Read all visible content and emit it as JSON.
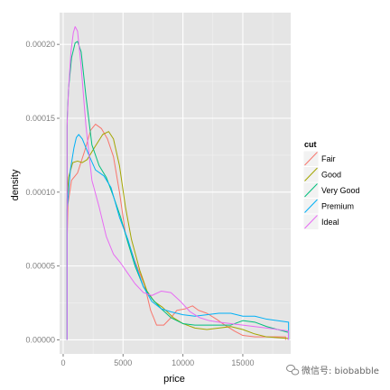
{
  "chart_data": {
    "type": "line",
    "xlabel": "price",
    "ylabel": "density",
    "xlim": [
      -300,
      19000
    ],
    "ylim": [
      -9.5e-06,
      0.0002215
    ],
    "x_ticks": [
      0,
      5000,
      10000,
      15000
    ],
    "x_tick_labels": [
      "0",
      "5000",
      "10000",
      "15000"
    ],
    "y_ticks": [
      0,
      5e-05,
      0.0001,
      0.00015,
      0.0002
    ],
    "y_tick_labels": [
      "0.00000",
      "0.00005",
      "0.00010",
      "0.00015",
      "0.00020"
    ],
    "grid": true,
    "legend": {
      "title": "cut",
      "position": "right",
      "entries": [
        "Fair",
        "Good",
        "Very Good",
        "Premium",
        "Ideal"
      ]
    },
    "series": [
      {
        "name": "Fair",
        "color": "#F8766D",
        "points": [
          [
            337,
            0
          ],
          [
            337,
            7e-05
          ],
          [
            400,
            9.2e-05
          ],
          [
            700,
            0.000108
          ],
          [
            1200,
            0.000113
          ],
          [
            1800,
            0.000128
          ],
          [
            2300,
            0.000142
          ],
          [
            2700,
            0.000146
          ],
          [
            3200,
            0.000143
          ],
          [
            3700,
            0.000136
          ],
          [
            4200,
            0.000124
          ],
          [
            4700,
            0.0001
          ],
          [
            5200,
            7.2e-05
          ],
          [
            6000,
            5.3e-05
          ],
          [
            6800,
            3.7e-05
          ],
          [
            7300,
            2e-05
          ],
          [
            7800,
            1e-05
          ],
          [
            8400,
            1e-05
          ],
          [
            9000,
            1.5e-05
          ],
          [
            9500,
            2e-05
          ],
          [
            10200,
            2.1e-05
          ],
          [
            10800,
            2.3e-05
          ],
          [
            11300,
            2e-05
          ],
          [
            12000,
            1.8e-05
          ],
          [
            12800,
            1.4e-05
          ],
          [
            13500,
            1e-05
          ],
          [
            14300,
            6e-06
          ],
          [
            15000,
            3e-06
          ],
          [
            16000,
            2e-06
          ],
          [
            17000,
            2e-06
          ],
          [
            18574,
            2e-06
          ],
          [
            18574,
            0
          ]
        ]
      },
      {
        "name": "Good",
        "color": "#A3A500",
        "points": [
          [
            327,
            0
          ],
          [
            327,
            9.5e-05
          ],
          [
            450,
            0.00011
          ],
          [
            800,
            0.00012
          ],
          [
            1200,
            0.000121
          ],
          [
            1600,
            0.00012
          ],
          [
            2000,
            0.000122
          ],
          [
            2600,
            0.00013
          ],
          [
            3300,
            0.000139
          ],
          [
            3800,
            0.000141
          ],
          [
            4200,
            0.000136
          ],
          [
            4700,
            0.000118
          ],
          [
            5200,
            9e-05
          ],
          [
            5700,
            6.8e-05
          ],
          [
            6400,
            4.7e-05
          ],
          [
            7000,
            3.3e-05
          ],
          [
            7600,
            2.6e-05
          ],
          [
            8300,
            2.2e-05
          ],
          [
            9200,
            1.5e-05
          ],
          [
            10000,
            1.1e-05
          ],
          [
            11000,
            8e-06
          ],
          [
            12000,
            7e-06
          ],
          [
            13000,
            8e-06
          ],
          [
            14000,
            9e-06
          ],
          [
            15000,
            7e-06
          ],
          [
            16000,
            4e-06
          ],
          [
            17000,
            2e-06
          ],
          [
            18788,
            1e-06
          ],
          [
            18788,
            0
          ]
        ]
      },
      {
        "name": "Very Good",
        "color": "#00BF7D",
        "points": [
          [
            336,
            0
          ],
          [
            336,
            0.00015
          ],
          [
            450,
            0.00017
          ],
          [
            700,
            0.000191
          ],
          [
            1000,
            0.000201
          ],
          [
            1200,
            0.000202
          ],
          [
            1500,
            0.000195
          ],
          [
            1900,
            0.000165
          ],
          [
            2400,
            0.000132
          ],
          [
            3000,
            0.000118
          ],
          [
            3600,
            0.00011
          ],
          [
            4200,
            9.7e-05
          ],
          [
            4800,
            8.3e-05
          ],
          [
            5400,
            6.6e-05
          ],
          [
            6000,
            5e-05
          ],
          [
            6700,
            3.6e-05
          ],
          [
            7400,
            2.8e-05
          ],
          [
            8200,
            2.1e-05
          ],
          [
            9000,
            1.5e-05
          ],
          [
            10000,
            1.1e-05
          ],
          [
            11000,
            1e-05
          ],
          [
            12000,
            1e-05
          ],
          [
            13000,
            1e-05
          ],
          [
            14000,
            1e-05
          ],
          [
            15000,
            1.3e-05
          ],
          [
            16000,
            1.2e-05
          ],
          [
            17000,
            9e-06
          ],
          [
            18818,
            5e-06
          ],
          [
            18818,
            0
          ]
        ]
      },
      {
        "name": "Premium",
        "color": "#00B0F6",
        "points": [
          [
            326,
            0
          ],
          [
            326,
            8.8e-05
          ],
          [
            600,
            0.000115
          ],
          [
            900,
            0.00013
          ],
          [
            1100,
            0.000137
          ],
          [
            1300,
            0.000139
          ],
          [
            1600,
            0.000136
          ],
          [
            2100,
            0.000126
          ],
          [
            2700,
            0.000115
          ],
          [
            3400,
            0.000111
          ],
          [
            4000,
            0.000103
          ],
          [
            4700,
            8.3e-05
          ],
          [
            5400,
            6.8e-05
          ],
          [
            6000,
            5.2e-05
          ],
          [
            6700,
            3.6e-05
          ],
          [
            7400,
            2.6e-05
          ],
          [
            8200,
            2.1e-05
          ],
          [
            9000,
            1.9e-05
          ],
          [
            10000,
            1.7e-05
          ],
          [
            11000,
            1.6e-05
          ],
          [
            12000,
            1.7e-05
          ],
          [
            13000,
            1.8e-05
          ],
          [
            14000,
            1.8e-05
          ],
          [
            15000,
            1.6e-05
          ],
          [
            16000,
            1.6e-05
          ],
          [
            17000,
            1.4e-05
          ],
          [
            18823,
            1.2e-05
          ],
          [
            18823,
            0
          ]
        ]
      },
      {
        "name": "Ideal",
        "color": "#E76BF3",
        "points": [
          [
            326,
            0
          ],
          [
            326,
            0.000145
          ],
          [
            450,
            0.00017
          ],
          [
            650,
            0.000195
          ],
          [
            850,
            0.000208
          ],
          [
            1000,
            0.000212
          ],
          [
            1200,
            0.000209
          ],
          [
            1500,
            0.000185
          ],
          [
            1900,
            0.000145
          ],
          [
            2400,
            0.000108
          ],
          [
            3000,
            9e-05
          ],
          [
            3600,
            7e-05
          ],
          [
            4200,
            5.8e-05
          ],
          [
            4800,
            5.2e-05
          ],
          [
            5400,
            4.5e-05
          ],
          [
            6000,
            3.8e-05
          ],
          [
            6700,
            3.2e-05
          ],
          [
            7400,
            3e-05
          ],
          [
            8200,
            3.3e-05
          ],
          [
            9000,
            3.2e-05
          ],
          [
            9800,
            2.6e-05
          ],
          [
            10600,
            1.9e-05
          ],
          [
            11400,
            1.5e-05
          ],
          [
            12200,
            1.3e-05
          ],
          [
            13000,
            1.2e-05
          ],
          [
            14000,
            1.1e-05
          ],
          [
            15000,
            1e-05
          ],
          [
            16000,
            9e-06
          ],
          [
            17000,
            8e-06
          ],
          [
            18806,
            6e-06
          ],
          [
            18806,
            0
          ]
        ]
      }
    ]
  },
  "watermark": {
    "text": "微信号: biobabble",
    "icon": "wechat-icon"
  }
}
